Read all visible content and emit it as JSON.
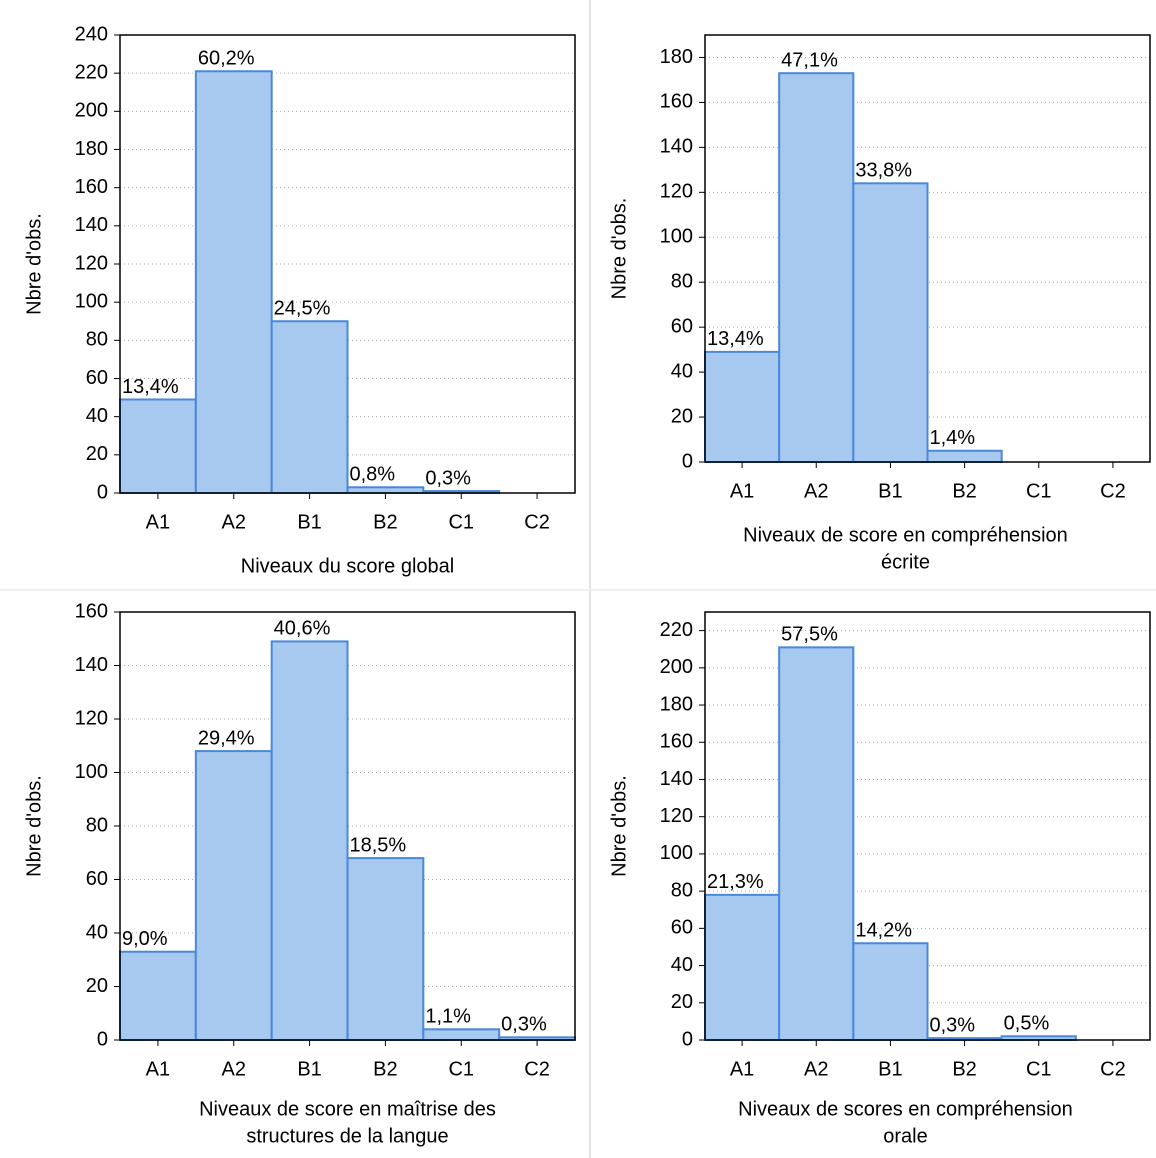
{
  "chart_data": [
    {
      "type": "bar",
      "y_label": "Nbre d'obs.",
      "x_label": [
        "Niveaux du score global"
      ],
      "categories": [
        "A1",
        "A2",
        "B1",
        "B2",
        "C1",
        "C2"
      ],
      "values": [
        49,
        221,
        90,
        3,
        1,
        0
      ],
      "percentage_labels": [
        "13,4%",
        "60,2%",
        "24,5%",
        "0,8%",
        "0,3%",
        null
      ],
      "ylim": [
        0,
        240
      ],
      "yticks": [
        0,
        20,
        40,
        60,
        80,
        100,
        120,
        140,
        160,
        180,
        200,
        220,
        240
      ],
      "grid": true,
      "color": "#a7c9ef",
      "edge_color": "#4a88d8"
    },
    {
      "type": "bar",
      "y_label": "Nbre d'obs.",
      "x_label": [
        "Niveaux de score en compréhension",
        "écrite"
      ],
      "categories": [
        "A1",
        "A2",
        "B1",
        "B2",
        "C1",
        "C2"
      ],
      "values": [
        49,
        173,
        124,
        5,
        0,
        0
      ],
      "percentage_labels": [
        "13,4%",
        "47,1%",
        "33,8%",
        "1,4%",
        null,
        null
      ],
      "ylim": [
        0,
        190
      ],
      "yticks": [
        0,
        20,
        40,
        60,
        80,
        100,
        120,
        140,
        160,
        180
      ],
      "grid": true,
      "color": "#a7c9ef",
      "edge_color": "#4a88d8"
    },
    {
      "type": "bar",
      "y_label": "Nbre d'obs.",
      "x_label": [
        "Niveaux de score en maîtrise des",
        "structures de la langue"
      ],
      "categories": [
        "A1",
        "A2",
        "B1",
        "B2",
        "C1",
        "C2"
      ],
      "values": [
        33,
        108,
        149,
        68,
        4,
        1
      ],
      "percentage_labels": [
        "9,0%",
        "29,4%",
        "40,6%",
        "18,5%",
        "1,1%",
        "0,3%"
      ],
      "ylim": [
        0,
        160
      ],
      "yticks": [
        0,
        20,
        40,
        60,
        80,
        100,
        120,
        140,
        160
      ],
      "grid": true,
      "color": "#a7c9ef",
      "edge_color": "#4a88d8"
    },
    {
      "type": "bar",
      "y_label": "Nbre d'obs.",
      "x_label": [
        "Niveaux de scores en compréhension",
        "orale"
      ],
      "categories": [
        "A1",
        "A2",
        "B1",
        "B2",
        "C1",
        "C2"
      ],
      "values": [
        78,
        211,
        52,
        1,
        2,
        0
      ],
      "percentage_labels": [
        "21,3%",
        "57,5%",
        "14,2%",
        "0,3%",
        "0,5%",
        null
      ],
      "ylim": [
        0,
        230
      ],
      "yticks": [
        0,
        20,
        40,
        60,
        80,
        100,
        120,
        140,
        160,
        180,
        200,
        220
      ],
      "grid": true,
      "color": "#a7c9ef",
      "edge_color": "#4a88d8"
    }
  ]
}
